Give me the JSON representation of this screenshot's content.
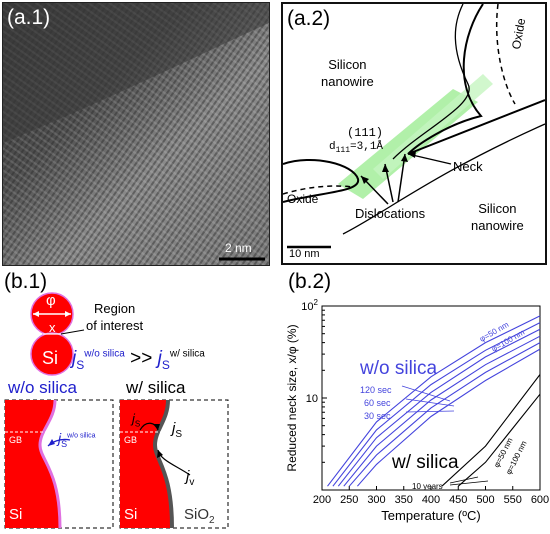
{
  "panels": {
    "a1": {
      "label": "(a.1)",
      "scalebar": "2 nm"
    },
    "a2": {
      "label": "(a.2)",
      "region_top": [
        "Silicon",
        "nanowire"
      ],
      "region_bottom": [
        "Silicon",
        "nanowire"
      ],
      "oxide_top": "Oxide",
      "oxide_left": "Oxide",
      "plane": "(111)",
      "dspacing": "d",
      "dspacing_sub": "111",
      "dspacing_val": "=3,1Å",
      "neck": "Neck",
      "dislocations": "Dislocations",
      "scalebar": "10 nm",
      "colors": {
        "dislocation_band": "#a8eea0"
      }
    },
    "b1": {
      "label": "(b.1)",
      "phi": "φ",
      "x": "x",
      "si": "Si",
      "region": [
        "Region",
        "of interest"
      ],
      "flux_j": "j",
      "flux_s": "S",
      "flux_compare": ">>",
      "flux_left_sup": "w/o silica",
      "flux_right_sup": "w/ silica",
      "left_title": "w/o silica",
      "right_title": "w/ silica",
      "gb": "GB",
      "si_left": "Si",
      "si_right": "Si",
      "sio": "SiO",
      "sio_sub": "2",
      "js_left_sup": "w/o silica",
      "jv": "v",
      "colors": {
        "silicon": "#ff0000",
        "label_blue": "#2020cc"
      }
    },
    "b2": {
      "label": "(b.2)",
      "wo_label": "w/o silica",
      "w_label": "w/ silica",
      "phi50": "φ=50 nm",
      "phi100": "φ=100 nm",
      "phi50_w": "φ=50 nm",
      "phi100_w": "φ=100 nm",
      "t120": "120 sec",
      "t60": "60 sec",
      "t30": "30 sec",
      "t10y": "10 years",
      "colors": {
        "blue": "#4444dd",
        "black": "#000000"
      }
    }
  },
  "chart_data": {
    "type": "line",
    "xlabel": "Temperature (ºC)",
    "ylabel": "Reduced neck size, x/φ (%)",
    "xlim": [
      200,
      600
    ],
    "ylim": [
      1,
      100
    ],
    "yscale": "log",
    "xticks": [
      200,
      250,
      300,
      350,
      400,
      450,
      500,
      550,
      600
    ],
    "yticks": [
      {
        "value": 10,
        "base": "10",
        "exp": ""
      },
      {
        "value": 100,
        "base": "10",
        "exp": "2"
      }
    ],
    "grid": false,
    "series": [
      {
        "group": "w/o silica",
        "x": [
          210,
          300,
          400,
          500,
          600
        ],
        "y": [
          1.1,
          5.5,
          17,
          40,
          78
        ]
      },
      {
        "group": "w/o silica",
        "x": [
          220,
          300,
          400,
          500,
          600
        ],
        "y": [
          1.1,
          4.5,
          14,
          33,
          66
        ]
      },
      {
        "group": "w/o silica",
        "x": [
          230,
          300,
          400,
          500,
          600
        ],
        "y": [
          1.1,
          3.7,
          11.5,
          28,
          56
        ]
      },
      {
        "group": "w/o silica",
        "x": [
          240,
          300,
          400,
          500,
          600
        ],
        "y": [
          1.1,
          3.0,
          9.5,
          23,
          47
        ]
      },
      {
        "group": "w/o silica",
        "x": [
          250,
          300,
          400,
          500,
          600
        ],
        "y": [
          1.1,
          2.4,
          7.8,
          19,
          40
        ]
      },
      {
        "group": "w/o silica",
        "x": [
          265,
          300,
          400,
          500,
          600
        ],
        "y": [
          1.1,
          1.9,
          6.3,
          15.5,
          34
        ]
      },
      {
        "group": "w/ silica",
        "x": [
          420,
          500,
          600
        ],
        "y": [
          1.1,
          3.0,
          18
        ]
      },
      {
        "group": "w/ silica",
        "x": [
          450,
          500,
          600
        ],
        "y": [
          1.1,
          2.0,
          11
        ]
      }
    ]
  }
}
